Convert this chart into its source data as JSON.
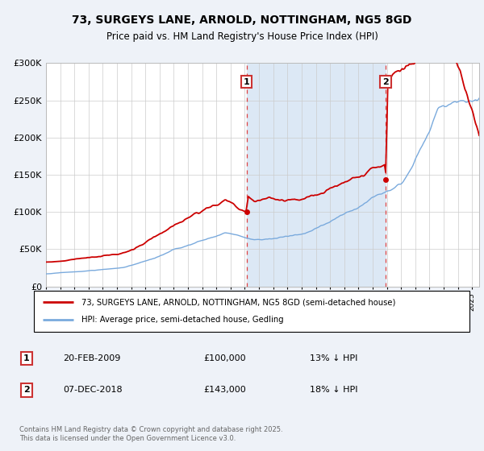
{
  "title1": "73, SURGEYS LANE, ARNOLD, NOTTINGHAM, NG5 8GD",
  "title2": "Price paid vs. HM Land Registry's House Price Index (HPI)",
  "legend1": "73, SURGEYS LANE, ARNOLD, NOTTINGHAM, NG5 8GD (semi-detached house)",
  "legend2": "HPI: Average price, semi-detached house, Gedling",
  "transaction1_date": "20-FEB-2009",
  "transaction1_price": "£100,000",
  "transaction1_hpi": "13% ↓ HPI",
  "transaction2_date": "07-DEC-2018",
  "transaction2_price": "£143,000",
  "transaction2_hpi": "18% ↓ HPI",
  "footer": "Contains HM Land Registry data © Crown copyright and database right 2025.\nThis data is licensed under the Open Government Licence v3.0.",
  "hpi_color": "#7aaadd",
  "price_color": "#cc0000",
  "fig_bg": "#eef2f8",
  "plot_bg": "#ffffff",
  "grid_color": "#cccccc",
  "dashed_color": "#dd4444",
  "highlight_bg": "#dce8f5",
  "transaction1_x": 2009.12,
  "transaction2_x": 2018.92,
  "ylim_min": 0,
  "ylim_max": 300000,
  "xlim_start": 1995.0,
  "xlim_end": 2025.5
}
